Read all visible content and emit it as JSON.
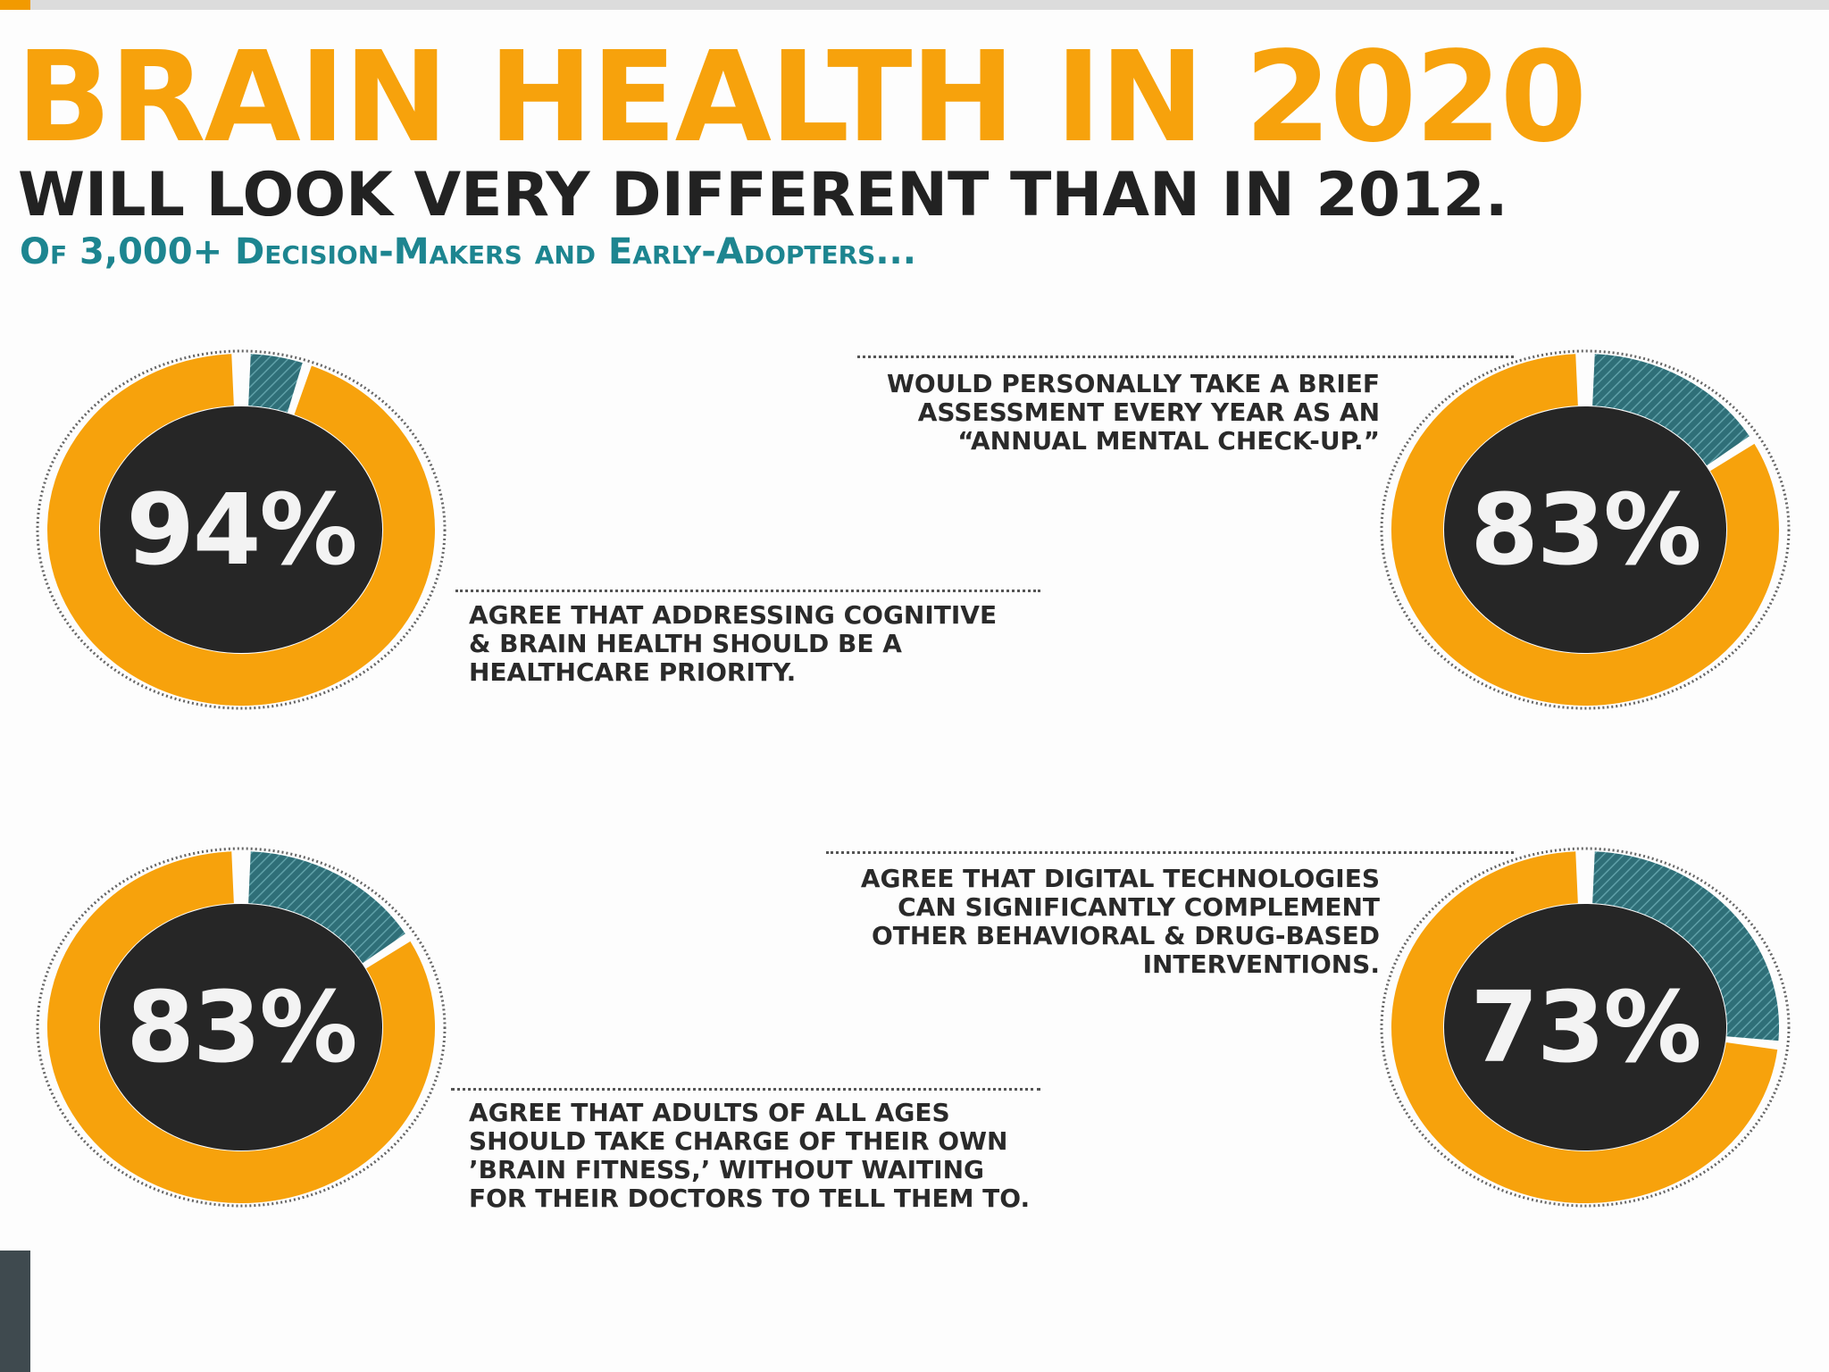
{
  "header": {
    "title": "BRAIN HEALTH IN 2020",
    "subtitle": "WILL LOOK VERY DIFFERENT THAN IN  2012.",
    "tagline": "Of 3,000+ Decision-Makers and Early-Adopters..."
  },
  "colors": {
    "orange": "#f7a20c",
    "teal": "#2f6f78",
    "dark": "#262626",
    "text": "#2a2a2a"
  },
  "chart_data": {
    "type": "pie",
    "title": "BRAIN HEALTH IN 2020",
    "series": [
      {
        "name": "addressing-cognitive",
        "value": 94,
        "label": "94%",
        "caption": [
          "AGREE THAT ADDRESSING COGNITIVE",
          "& BRAIN HEALTH SHOULD BE A",
          "HEALTHCARE PRIORITY."
        ]
      },
      {
        "name": "annual-checkup",
        "value": 83,
        "label": "83%",
        "caption": [
          "WOULD PERSONALLY TAKE A BRIEF",
          "ASSESSMENT EVERY YEAR AS AN",
          "“ANNUAL MENTAL CHECK-UP.”"
        ]
      },
      {
        "name": "brain-fitness",
        "value": 83,
        "label": "83%",
        "caption": [
          "AGREE THAT ADULTS OF ALL AGES",
          "SHOULD TAKE CHARGE OF THEIR OWN",
          "’BRAIN FITNESS,’ WITHOUT WAITING",
          "FOR THEIR DOCTORS TO TELL THEM TO."
        ]
      },
      {
        "name": "digital-tech",
        "value": 73,
        "label": "73%",
        "caption": [
          "AGREE THAT DIGITAL TECHNOLOGIES",
          "CAN SIGNIFICANTLY COMPLEMENT",
          "OTHER BEHAVIORAL & DRUG-BASED",
          "INTERVENTIONS."
        ]
      }
    ]
  }
}
